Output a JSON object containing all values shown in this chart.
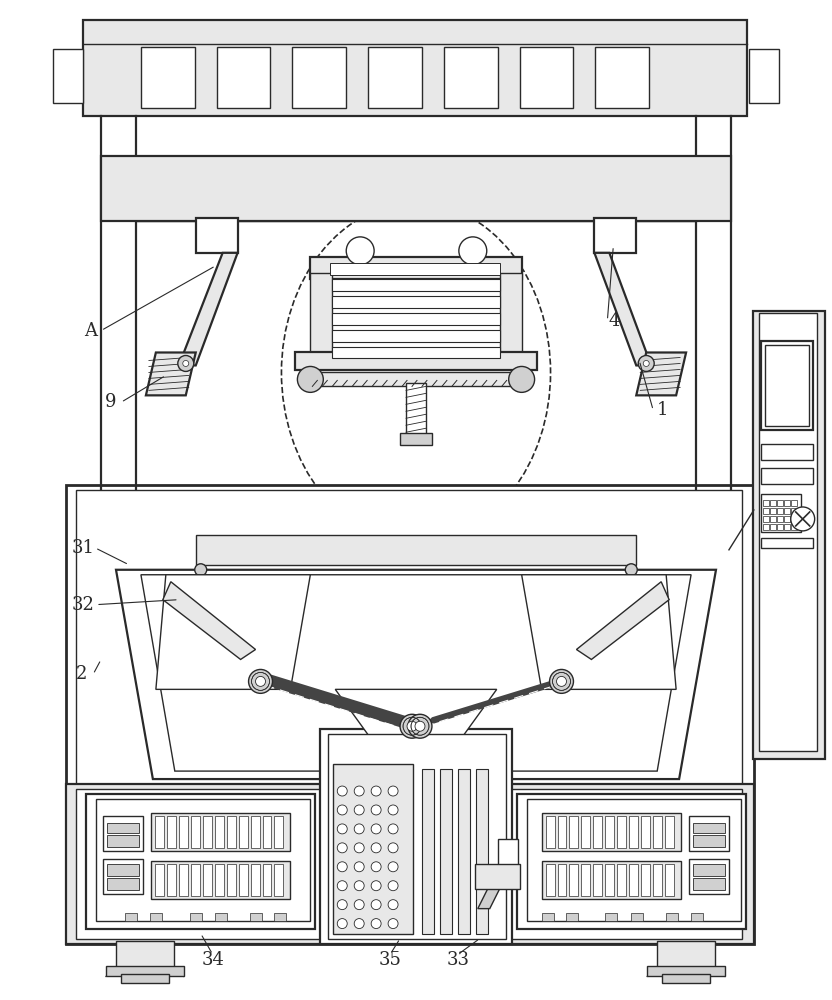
{
  "bg_color": "#ffffff",
  "lc": "#2a2a2a",
  "lw": 1.0,
  "lw2": 1.6,
  "lw3": 2.0
}
